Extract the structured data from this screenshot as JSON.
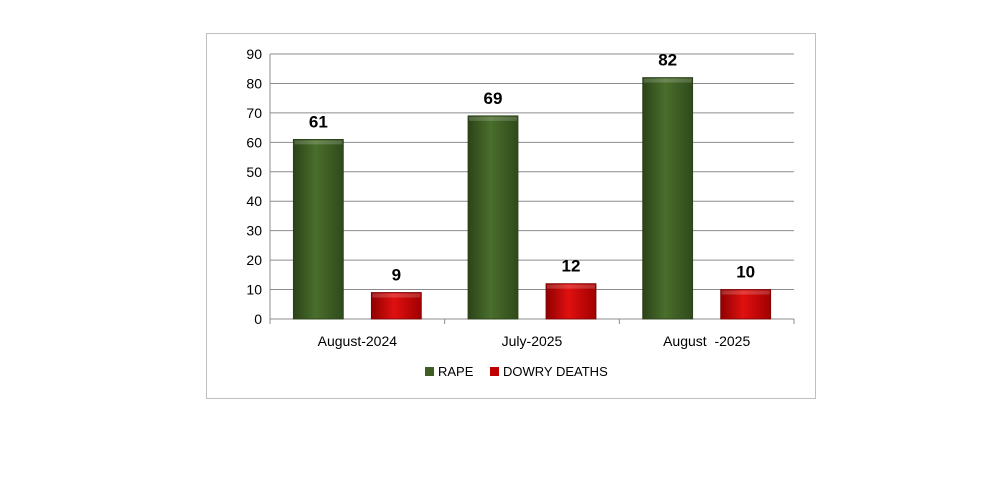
{
  "chart_data": {
    "type": "bar",
    "categories": [
      "August-2024",
      "July-2025",
      "August  -2025"
    ],
    "series": [
      {
        "name": "RAPE",
        "values": [
          61,
          69,
          82
        ],
        "color": "#3e5e23"
      },
      {
        "name": "DOWRY DEATHS",
        "values": [
          9,
          12,
          10
        ],
        "color": "#c00000"
      }
    ],
    "yticks": [
      "0",
      "10",
      "20",
      "30",
      "40",
      "50",
      "60",
      "70",
      "80",
      "90"
    ],
    "ylim": [
      0,
      90
    ],
    "grid": true,
    "legend": "bottom"
  }
}
